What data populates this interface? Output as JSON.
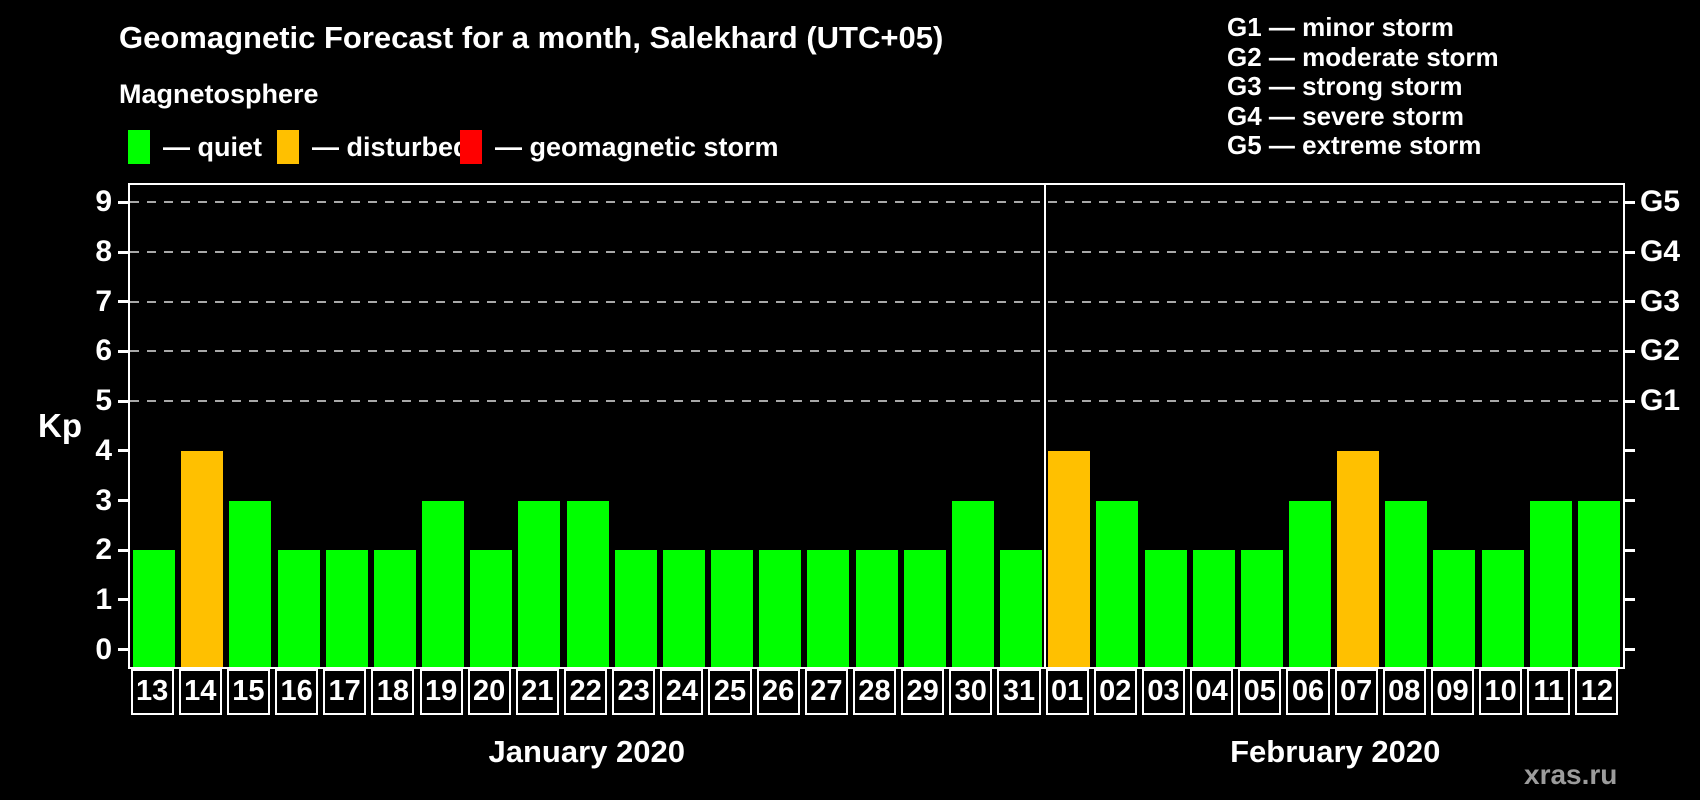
{
  "title": "Geomagnetic Forecast for a month, Salekhard (UTC+05)",
  "subtitle": "Magnetosphere",
  "watermark": "xras.ru",
  "legend": {
    "items": [
      {
        "key": "quiet",
        "label": "— quiet",
        "color": "#00ff00"
      },
      {
        "key": "disturbed",
        "label": "— disturbed",
        "color": "#ffc000"
      },
      {
        "key": "storm",
        "label": "— geomagnetic storm",
        "color": "#ff0000"
      }
    ]
  },
  "storm_scale_legend": [
    {
      "label": "G1 — minor storm"
    },
    {
      "label": "G2 — moderate storm"
    },
    {
      "label": "G3 — strong storm"
    },
    {
      "label": "G4 — severe storm"
    },
    {
      "label": "G5 — extreme storm"
    }
  ],
  "chart_data": {
    "type": "bar",
    "ylabel": "Kp",
    "ylim": [
      0,
      9
    ],
    "yticks": [
      0,
      1,
      2,
      3,
      4,
      5,
      6,
      7,
      8,
      9
    ],
    "gridlines_at": [
      5,
      6,
      7,
      8,
      9
    ],
    "grid_style": "dashed",
    "right_axis_labels": [
      {
        "value": 5,
        "label": "G1"
      },
      {
        "value": 6,
        "label": "G2"
      },
      {
        "value": 7,
        "label": "G3"
      },
      {
        "value": 8,
        "label": "G4"
      },
      {
        "value": 9,
        "label": "G5"
      }
    ],
    "months": [
      {
        "label": "January 2020",
        "bars": [
          {
            "day": "13",
            "kp": 2,
            "status": "quiet"
          },
          {
            "day": "14",
            "kp": 4,
            "status": "disturbed"
          },
          {
            "day": "15",
            "kp": 3,
            "status": "quiet"
          },
          {
            "day": "16",
            "kp": 2,
            "status": "quiet"
          },
          {
            "day": "17",
            "kp": 2,
            "status": "quiet"
          },
          {
            "day": "18",
            "kp": 2,
            "status": "quiet"
          },
          {
            "day": "19",
            "kp": 3,
            "status": "quiet"
          },
          {
            "day": "20",
            "kp": 2,
            "status": "quiet"
          },
          {
            "day": "21",
            "kp": 3,
            "status": "quiet"
          },
          {
            "day": "22",
            "kp": 3,
            "status": "quiet"
          },
          {
            "day": "23",
            "kp": 2,
            "status": "quiet"
          },
          {
            "day": "24",
            "kp": 2,
            "status": "quiet"
          },
          {
            "day": "25",
            "kp": 2,
            "status": "quiet"
          },
          {
            "day": "26",
            "kp": 2,
            "status": "quiet"
          },
          {
            "day": "27",
            "kp": 2,
            "status": "quiet"
          },
          {
            "day": "28",
            "kp": 2,
            "status": "quiet"
          },
          {
            "day": "29",
            "kp": 2,
            "status": "quiet"
          },
          {
            "day": "30",
            "kp": 3,
            "status": "quiet"
          },
          {
            "day": "31",
            "kp": 2,
            "status": "quiet"
          }
        ]
      },
      {
        "label": "February 2020",
        "bars": [
          {
            "day": "01",
            "kp": 4,
            "status": "disturbed"
          },
          {
            "day": "02",
            "kp": 3,
            "status": "quiet"
          },
          {
            "day": "03",
            "kp": 2,
            "status": "quiet"
          },
          {
            "day": "04",
            "kp": 2,
            "status": "quiet"
          },
          {
            "day": "05",
            "kp": 2,
            "status": "quiet"
          },
          {
            "day": "06",
            "kp": 3,
            "status": "quiet"
          },
          {
            "day": "07",
            "kp": 4,
            "status": "disturbed"
          },
          {
            "day": "08",
            "kp": 3,
            "status": "quiet"
          },
          {
            "day": "09",
            "kp": 2,
            "status": "quiet"
          },
          {
            "day": "10",
            "kp": 2,
            "status": "quiet"
          },
          {
            "day": "11",
            "kp": 3,
            "status": "quiet"
          },
          {
            "day": "12",
            "kp": 3,
            "status": "quiet"
          }
        ]
      }
    ]
  }
}
